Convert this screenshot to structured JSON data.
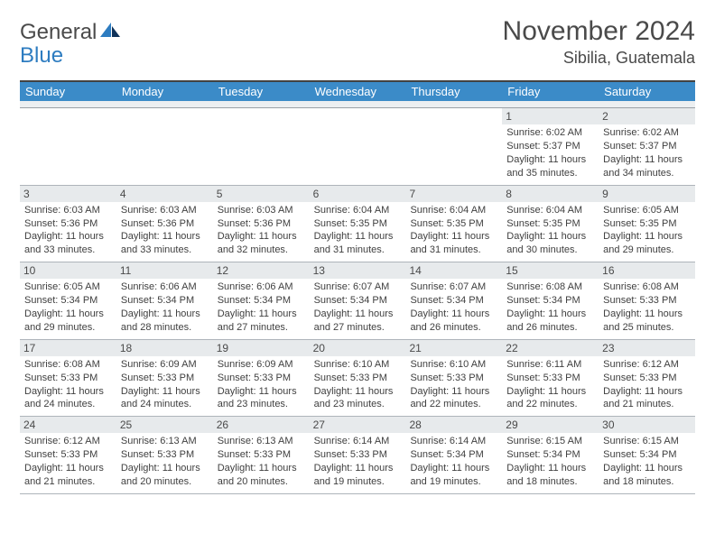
{
  "brand": {
    "general": "General",
    "blue": "Blue"
  },
  "title": "November 2024",
  "location": "Sibilia, Guatemala",
  "weekdays": [
    "Sunday",
    "Monday",
    "Tuesday",
    "Wednesday",
    "Thursday",
    "Friday",
    "Saturday"
  ],
  "colors": {
    "header_bar": "#3b8bc8",
    "rule": "#424242",
    "day_num_bg": "#e7eaec",
    "text": "#3f3f3f"
  },
  "weeks": [
    [
      null,
      null,
      null,
      null,
      null,
      {
        "n": "1",
        "sr": "Sunrise: 6:02 AM",
        "ss": "Sunset: 5:37 PM",
        "dl1": "Daylight: 11 hours",
        "dl2": "and 35 minutes."
      },
      {
        "n": "2",
        "sr": "Sunrise: 6:02 AM",
        "ss": "Sunset: 5:37 PM",
        "dl1": "Daylight: 11 hours",
        "dl2": "and 34 minutes."
      }
    ],
    [
      {
        "n": "3",
        "sr": "Sunrise: 6:03 AM",
        "ss": "Sunset: 5:36 PM",
        "dl1": "Daylight: 11 hours",
        "dl2": "and 33 minutes."
      },
      {
        "n": "4",
        "sr": "Sunrise: 6:03 AM",
        "ss": "Sunset: 5:36 PM",
        "dl1": "Daylight: 11 hours",
        "dl2": "and 33 minutes."
      },
      {
        "n": "5",
        "sr": "Sunrise: 6:03 AM",
        "ss": "Sunset: 5:36 PM",
        "dl1": "Daylight: 11 hours",
        "dl2": "and 32 minutes."
      },
      {
        "n": "6",
        "sr": "Sunrise: 6:04 AM",
        "ss": "Sunset: 5:35 PM",
        "dl1": "Daylight: 11 hours",
        "dl2": "and 31 minutes."
      },
      {
        "n": "7",
        "sr": "Sunrise: 6:04 AM",
        "ss": "Sunset: 5:35 PM",
        "dl1": "Daylight: 11 hours",
        "dl2": "and 31 minutes."
      },
      {
        "n": "8",
        "sr": "Sunrise: 6:04 AM",
        "ss": "Sunset: 5:35 PM",
        "dl1": "Daylight: 11 hours",
        "dl2": "and 30 minutes."
      },
      {
        "n": "9",
        "sr": "Sunrise: 6:05 AM",
        "ss": "Sunset: 5:35 PM",
        "dl1": "Daylight: 11 hours",
        "dl2": "and 29 minutes."
      }
    ],
    [
      {
        "n": "10",
        "sr": "Sunrise: 6:05 AM",
        "ss": "Sunset: 5:34 PM",
        "dl1": "Daylight: 11 hours",
        "dl2": "and 29 minutes."
      },
      {
        "n": "11",
        "sr": "Sunrise: 6:06 AM",
        "ss": "Sunset: 5:34 PM",
        "dl1": "Daylight: 11 hours",
        "dl2": "and 28 minutes."
      },
      {
        "n": "12",
        "sr": "Sunrise: 6:06 AM",
        "ss": "Sunset: 5:34 PM",
        "dl1": "Daylight: 11 hours",
        "dl2": "and 27 minutes."
      },
      {
        "n": "13",
        "sr": "Sunrise: 6:07 AM",
        "ss": "Sunset: 5:34 PM",
        "dl1": "Daylight: 11 hours",
        "dl2": "and 27 minutes."
      },
      {
        "n": "14",
        "sr": "Sunrise: 6:07 AM",
        "ss": "Sunset: 5:34 PM",
        "dl1": "Daylight: 11 hours",
        "dl2": "and 26 minutes."
      },
      {
        "n": "15",
        "sr": "Sunrise: 6:08 AM",
        "ss": "Sunset: 5:34 PM",
        "dl1": "Daylight: 11 hours",
        "dl2": "and 26 minutes."
      },
      {
        "n": "16",
        "sr": "Sunrise: 6:08 AM",
        "ss": "Sunset: 5:33 PM",
        "dl1": "Daylight: 11 hours",
        "dl2": "and 25 minutes."
      }
    ],
    [
      {
        "n": "17",
        "sr": "Sunrise: 6:08 AM",
        "ss": "Sunset: 5:33 PM",
        "dl1": "Daylight: 11 hours",
        "dl2": "and 24 minutes."
      },
      {
        "n": "18",
        "sr": "Sunrise: 6:09 AM",
        "ss": "Sunset: 5:33 PM",
        "dl1": "Daylight: 11 hours",
        "dl2": "and 24 minutes."
      },
      {
        "n": "19",
        "sr": "Sunrise: 6:09 AM",
        "ss": "Sunset: 5:33 PM",
        "dl1": "Daylight: 11 hours",
        "dl2": "and 23 minutes."
      },
      {
        "n": "20",
        "sr": "Sunrise: 6:10 AM",
        "ss": "Sunset: 5:33 PM",
        "dl1": "Daylight: 11 hours",
        "dl2": "and 23 minutes."
      },
      {
        "n": "21",
        "sr": "Sunrise: 6:10 AM",
        "ss": "Sunset: 5:33 PM",
        "dl1": "Daylight: 11 hours",
        "dl2": "and 22 minutes."
      },
      {
        "n": "22",
        "sr": "Sunrise: 6:11 AM",
        "ss": "Sunset: 5:33 PM",
        "dl1": "Daylight: 11 hours",
        "dl2": "and 22 minutes."
      },
      {
        "n": "23",
        "sr": "Sunrise: 6:12 AM",
        "ss": "Sunset: 5:33 PM",
        "dl1": "Daylight: 11 hours",
        "dl2": "and 21 minutes."
      }
    ],
    [
      {
        "n": "24",
        "sr": "Sunrise: 6:12 AM",
        "ss": "Sunset: 5:33 PM",
        "dl1": "Daylight: 11 hours",
        "dl2": "and 21 minutes."
      },
      {
        "n": "25",
        "sr": "Sunrise: 6:13 AM",
        "ss": "Sunset: 5:33 PM",
        "dl1": "Daylight: 11 hours",
        "dl2": "and 20 minutes."
      },
      {
        "n": "26",
        "sr": "Sunrise: 6:13 AM",
        "ss": "Sunset: 5:33 PM",
        "dl1": "Daylight: 11 hours",
        "dl2": "and 20 minutes."
      },
      {
        "n": "27",
        "sr": "Sunrise: 6:14 AM",
        "ss": "Sunset: 5:33 PM",
        "dl1": "Daylight: 11 hours",
        "dl2": "and 19 minutes."
      },
      {
        "n": "28",
        "sr": "Sunrise: 6:14 AM",
        "ss": "Sunset: 5:34 PM",
        "dl1": "Daylight: 11 hours",
        "dl2": "and 19 minutes."
      },
      {
        "n": "29",
        "sr": "Sunrise: 6:15 AM",
        "ss": "Sunset: 5:34 PM",
        "dl1": "Daylight: 11 hours",
        "dl2": "and 18 minutes."
      },
      {
        "n": "30",
        "sr": "Sunrise: 6:15 AM",
        "ss": "Sunset: 5:34 PM",
        "dl1": "Daylight: 11 hours",
        "dl2": "and 18 minutes."
      }
    ]
  ]
}
